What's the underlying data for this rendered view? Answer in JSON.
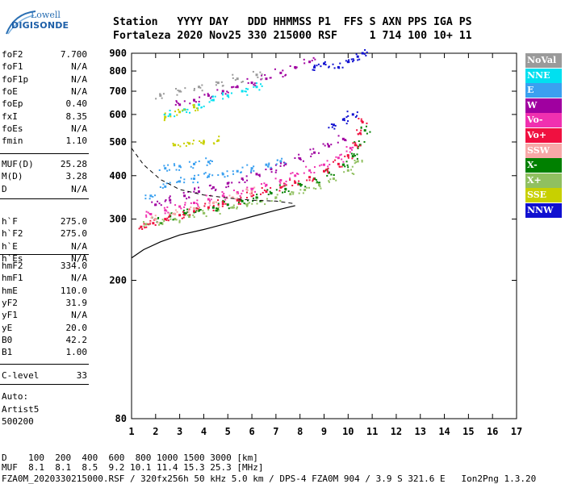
{
  "logo": {
    "line1": "Lowell",
    "line2": "DIGISONDE"
  },
  "header": {
    "labels": "Station   YYYY DAY   DDD HHMMSS P1  FFS S AXN PPS IGA PS",
    "values": "Fortaleza 2020 Nov25 330 215000 RSF     1 714 100 10+ 11"
  },
  "params": {
    "group1": [
      {
        "name": "foF2",
        "value": "7.700"
      },
      {
        "name": "foF1",
        "value": "N/A"
      },
      {
        "name": "foF1p",
        "value": "N/A"
      },
      {
        "name": "foE",
        "value": "N/A"
      },
      {
        "name": "foEp",
        "value": "0.40"
      },
      {
        "name": "fxI",
        "value": "8.35"
      },
      {
        "name": "foEs",
        "value": "N/A"
      },
      {
        "name": "fmin",
        "value": "1.10"
      }
    ],
    "group2": [
      {
        "name": "MUF(D)",
        "value": "25.28"
      },
      {
        "name": "M(D)",
        "value": "3.28"
      },
      {
        "name": "D",
        "value": "N/A"
      }
    ],
    "group3": [
      {
        "name": "h`F",
        "value": "275.0"
      },
      {
        "name": "h`F2",
        "value": "275.0"
      },
      {
        "name": "h`E",
        "value": "N/A"
      },
      {
        "name": "h`Es",
        "value": "N/A"
      }
    ],
    "group4": [
      {
        "name": "hmF2",
        "value": "334.0"
      },
      {
        "name": "hmF1",
        "value": "N/A"
      },
      {
        "name": "hmE",
        "value": "110.0"
      },
      {
        "name": "yF2",
        "value": "31.9"
      },
      {
        "name": "yF1",
        "value": "N/A"
      },
      {
        "name": "yE",
        "value": "20.0"
      },
      {
        "name": "B0",
        "value": "42.2"
      },
      {
        "name": "B1",
        "value": "1.00"
      }
    ],
    "group5": [
      {
        "name": "C-level",
        "value": "33"
      }
    ]
  },
  "auto": {
    "line1": "Auto:",
    "line2": "Artist5",
    "line3": "500200"
  },
  "legend": [
    {
      "label": "NoVal",
      "color": "#9a9a9a"
    },
    {
      "label": "NNE",
      "color": "#00e0f0"
    },
    {
      "label": "E",
      "color": "#3aa0f0"
    },
    {
      "label": "W",
      "color": "#a000a0"
    },
    {
      "label": "Vo-",
      "color": "#f030b0"
    },
    {
      "label": "Vo+",
      "color": "#f01040"
    },
    {
      "label": "SSW",
      "color": "#f8a8a8"
    },
    {
      "label": "X-",
      "color": "#008000"
    },
    {
      "label": "X+",
      "color": "#90c060"
    },
    {
      "label": "SSE",
      "color": "#c8d000"
    },
    {
      "label": "NNW",
      "color": "#1010d0"
    }
  ],
  "bottom": {
    "d_line": "D    100  200  400  600  800 1000 1500 3000 [km]",
    "muf_line": "MUF  8.1  8.1  8.5  9.2 10.1 11.4 15.3 25.3 [MHz]",
    "footer": "FZA0M_2020330215000.RSF / 320fx256h 50 kHz 5.0 km / DPS-4 FZA0M 904 / 3.9 S 321.6 E   Ion2Png 1.3.20"
  },
  "chart_data": {
    "type": "scatter",
    "x_label": "",
    "y_label": "",
    "xlim": [
      1,
      17
    ],
    "ylim": [
      80,
      900
    ],
    "y_scale": "log",
    "x_ticks": [
      1,
      2,
      3,
      4,
      5,
      6,
      7,
      8,
      9,
      10,
      11,
      12,
      13,
      14,
      15,
      16,
      17
    ],
    "y_ticks": [
      80,
      200,
      300,
      400,
      500,
      600,
      700,
      800,
      900
    ],
    "grid": false,
    "legend_position": "right",
    "series": [
      {
        "name": "X+",
        "points": [
          [
            1.6,
            290
          ],
          [
            2.2,
            292
          ],
          [
            2.8,
            300
          ],
          [
            3.4,
            305
          ],
          [
            4.0,
            312
          ],
          [
            4.6,
            318
          ],
          [
            5.2,
            324
          ],
          [
            5.8,
            330
          ],
          [
            6.4,
            338
          ],
          [
            7.0,
            346
          ],
          [
            7.6,
            354
          ],
          [
            8.2,
            364
          ],
          [
            8.8,
            376
          ],
          [
            9.4,
            392
          ],
          [
            10.0,
            414
          ],
          [
            10.4,
            440
          ]
        ]
      },
      {
        "name": "X-",
        "points": [
          [
            2.0,
            300
          ],
          [
            2.6,
            306
          ],
          [
            3.2,
            312
          ],
          [
            3.8,
            318
          ],
          [
            4.4,
            324
          ],
          [
            5.0,
            330
          ],
          [
            5.6,
            338
          ],
          [
            6.2,
            346
          ],
          [
            6.8,
            356
          ],
          [
            7.4,
            366
          ],
          [
            8.0,
            378
          ],
          [
            8.6,
            392
          ],
          [
            9.2,
            408
          ],
          [
            9.8,
            430
          ],
          [
            10.2,
            455
          ],
          [
            10.5,
            490
          ],
          [
            10.7,
            540
          ]
        ]
      },
      {
        "name": "Vo+",
        "points": [
          [
            1.4,
            285
          ],
          [
            1.9,
            292
          ],
          [
            2.4,
            300
          ],
          [
            3.0,
            308
          ],
          [
            3.6,
            316
          ],
          [
            4.2,
            324
          ],
          [
            4.8,
            332
          ],
          [
            5.4,
            340
          ],
          [
            6.0,
            350
          ],
          [
            6.6,
            360
          ],
          [
            7.2,
            370
          ],
          [
            7.8,
            382
          ],
          [
            8.4,
            396
          ],
          [
            9.0,
            412
          ],
          [
            9.6,
            432
          ],
          [
            10.0,
            456
          ],
          [
            10.3,
            490
          ],
          [
            10.5,
            530
          ],
          [
            10.6,
            570
          ]
        ]
      },
      {
        "name": "Vo-",
        "points": [
          [
            1.8,
            310
          ],
          [
            2.4,
            318
          ],
          [
            3.0,
            326
          ],
          [
            3.6,
            334
          ],
          [
            4.2,
            342
          ],
          [
            4.8,
            350
          ],
          [
            5.4,
            358
          ],
          [
            6.0,
            366
          ],
          [
            6.6,
            376
          ],
          [
            7.2,
            388
          ],
          [
            7.8,
            400
          ],
          [
            8.4,
            414
          ],
          [
            9.0,
            430
          ],
          [
            9.6,
            450
          ],
          [
            10.1,
            480
          ]
        ]
      },
      {
        "name": "W",
        "points": [
          [
            2.0,
            330
          ],
          [
            2.6,
            340
          ],
          [
            3.2,
            350
          ],
          [
            3.8,
            360
          ],
          [
            4.4,
            370
          ],
          [
            5.0,
            380
          ],
          [
            5.6,
            392
          ],
          [
            6.2,
            404
          ],
          [
            6.8,
            418
          ],
          [
            7.4,
            432
          ],
          [
            8.0,
            448
          ],
          [
            8.6,
            466
          ],
          [
            9.2,
            486
          ],
          [
            9.8,
            510
          ],
          [
            3.0,
            640
          ],
          [
            3.6,
            660
          ],
          [
            4.2,
            680
          ],
          [
            4.8,
            700
          ],
          [
            5.4,
            720
          ],
          [
            6.0,
            740
          ],
          [
            6.6,
            760
          ],
          [
            7.2,
            790
          ],
          [
            7.8,
            820
          ],
          [
            8.4,
            850
          ]
        ]
      },
      {
        "name": "E",
        "points": [
          [
            1.8,
            350
          ],
          [
            2.4,
            372
          ],
          [
            3.0,
            385
          ],
          [
            3.6,
            392
          ],
          [
            4.2,
            398
          ],
          [
            4.8,
            404
          ],
          [
            5.4,
            412
          ],
          [
            6.0,
            420
          ],
          [
            6.6,
            430
          ],
          [
            7.2,
            440
          ],
          [
            2.4,
            420
          ],
          [
            3.0,
            426
          ],
          [
            3.6,
            432
          ],
          [
            4.2,
            438
          ]
        ]
      },
      {
        "name": "NNE",
        "points": [
          [
            2.6,
            600
          ],
          [
            3.2,
            620
          ],
          [
            3.8,
            640
          ],
          [
            4.4,
            660
          ],
          [
            5.0,
            680
          ],
          [
            5.6,
            700
          ],
          [
            6.2,
            720
          ]
        ]
      },
      {
        "name": "SSE",
        "points": [
          [
            2.8,
            490
          ],
          [
            3.4,
            495
          ],
          [
            4.0,
            500
          ],
          [
            4.6,
            505
          ],
          [
            2.4,
            590
          ],
          [
            3.0,
            610
          ],
          [
            3.6,
            630
          ]
        ]
      },
      {
        "name": "NNW",
        "points": [
          [
            9.4,
            560
          ],
          [
            9.8,
            580
          ],
          [
            10.2,
            600
          ],
          [
            9.6,
            820
          ],
          [
            10.0,
            850
          ],
          [
            10.4,
            880
          ],
          [
            10.6,
            900
          ],
          [
            8.6,
            820
          ],
          [
            9.0,
            840
          ]
        ]
      },
      {
        "name": "SSW",
        "points": [
          [
            2.0,
            300
          ],
          [
            2.8,
            310
          ],
          [
            3.6,
            322
          ],
          [
            4.4,
            334
          ],
          [
            5.2,
            346
          ],
          [
            6.0,
            360
          ]
        ]
      },
      {
        "name": "NoVal",
        "points": [
          [
            2.2,
            680
          ],
          [
            3.0,
            700
          ],
          [
            3.8,
            720
          ],
          [
            4.6,
            740
          ],
          [
            5.4,
            760
          ],
          [
            6.2,
            780
          ]
        ]
      }
    ]
  }
}
